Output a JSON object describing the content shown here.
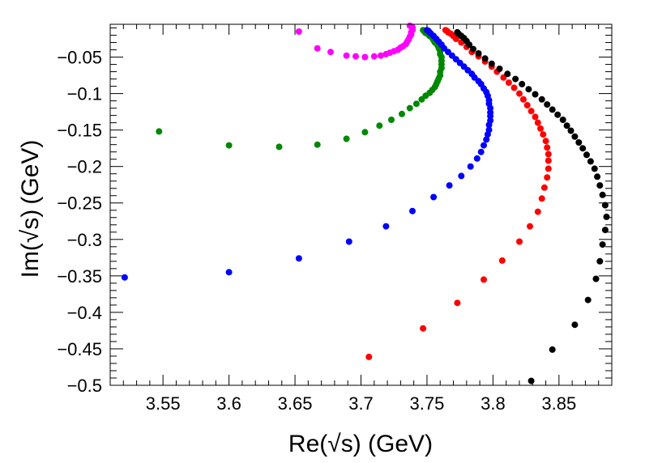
{
  "chart_data": {
    "type": "scatter",
    "title": "",
    "xlabel": "Re(√s) (GeV)",
    "ylabel": "Im(√s) (GeV)",
    "xlim": [
      3.51,
      3.89
    ],
    "ylim": [
      -0.5,
      -0.005
    ],
    "x_ticks": [
      {
        "value": 3.55,
        "label": "3.55"
      },
      {
        "value": 3.6,
        "label": "3.6"
      },
      {
        "value": 3.65,
        "label": "3.65"
      },
      {
        "value": 3.7,
        "label": "3.7"
      },
      {
        "value": 3.75,
        "label": "3.75"
      },
      {
        "value": 3.8,
        "label": "3.8"
      },
      {
        "value": 3.85,
        "label": "3.85"
      }
    ],
    "y_ticks": [
      {
        "value": -0.05,
        "label": "−0.05"
      },
      {
        "value": -0.1,
        "label": "−0.1"
      },
      {
        "value": -0.15,
        "label": "−0.15"
      },
      {
        "value": -0.2,
        "label": "−0.2"
      },
      {
        "value": -0.25,
        "label": "−0.25"
      },
      {
        "value": -0.3,
        "label": "−0.3"
      },
      {
        "value": -0.35,
        "label": "−0.35"
      },
      {
        "value": -0.4,
        "label": "−0.4"
      },
      {
        "value": -0.45,
        "label": "−0.45"
      },
      {
        "value": -0.5,
        "label": "−0.5"
      }
    ],
    "grid": false,
    "legend": "none",
    "series": [
      {
        "name": "magenta",
        "color": "#ff00ff",
        "points": [
          [
            3.653,
            -0.015
          ],
          [
            3.667,
            -0.038
          ],
          [
            3.677,
            -0.043
          ],
          [
            3.689,
            -0.048
          ],
          [
            3.696,
            -0.049
          ],
          [
            3.703,
            -0.05
          ],
          [
            3.71,
            -0.049
          ],
          [
            3.715,
            -0.048
          ],
          [
            3.719,
            -0.046
          ],
          [
            3.722,
            -0.044
          ],
          [
            3.725,
            -0.042
          ],
          [
            3.728,
            -0.04
          ],
          [
            3.73,
            -0.037
          ],
          [
            3.732,
            -0.035
          ],
          [
            3.734,
            -0.032
          ],
          [
            3.735,
            -0.029
          ],
          [
            3.736,
            -0.026
          ],
          [
            3.737,
            -0.022
          ],
          [
            3.738,
            -0.019
          ],
          [
            3.738,
            -0.016
          ],
          [
            3.739,
            -0.013
          ],
          [
            3.739,
            -0.011
          ],
          [
            3.739,
            -0.009
          ],
          [
            3.738,
            -0.008
          ],
          [
            3.737,
            -0.007
          ]
        ]
      },
      {
        "name": "green",
        "color": "#008800",
        "points": [
          [
            3.547,
            -0.152
          ],
          [
            3.6,
            -0.171
          ],
          [
            3.638,
            -0.173
          ],
          [
            3.667,
            -0.17
          ],
          [
            3.689,
            -0.162
          ],
          [
            3.703,
            -0.153
          ],
          [
            3.714,
            -0.144
          ],
          [
            3.723,
            -0.136
          ],
          [
            3.731,
            -0.128
          ],
          [
            3.737,
            -0.12
          ],
          [
            3.742,
            -0.114
          ],
          [
            3.746,
            -0.108
          ],
          [
            3.749,
            -0.103
          ],
          [
            3.752,
            -0.099
          ],
          [
            3.754,
            -0.095
          ],
          [
            3.756,
            -0.091
          ],
          [
            3.757,
            -0.087
          ],
          [
            3.758,
            -0.083
          ],
          [
            3.759,
            -0.079
          ],
          [
            3.76,
            -0.075
          ],
          [
            3.76,
            -0.07
          ],
          [
            3.761,
            -0.065
          ],
          [
            3.761,
            -0.06
          ],
          [
            3.761,
            -0.055
          ],
          [
            3.761,
            -0.05
          ],
          [
            3.76,
            -0.046
          ],
          [
            3.76,
            -0.042
          ],
          [
            3.759,
            -0.038
          ],
          [
            3.758,
            -0.034
          ],
          [
            3.756,
            -0.03
          ],
          [
            3.755,
            -0.027
          ],
          [
            3.754,
            -0.024
          ],
          [
            3.752,
            -0.021
          ],
          [
            3.751,
            -0.019
          ],
          [
            3.749,
            -0.017
          ],
          [
            3.748,
            -0.015
          ],
          [
            3.747,
            -0.013
          ]
        ]
      },
      {
        "name": "blue",
        "color": "#0000ff",
        "points": [
          [
            3.521,
            -0.352
          ],
          [
            3.6,
            -0.345
          ],
          [
            3.653,
            -0.326
          ],
          [
            3.691,
            -0.303
          ],
          [
            3.719,
            -0.282
          ],
          [
            3.739,
            -0.261
          ],
          [
            3.755,
            -0.242
          ],
          [
            3.767,
            -0.226
          ],
          [
            3.776,
            -0.213
          ],
          [
            3.783,
            -0.2
          ],
          [
            3.788,
            -0.189
          ],
          [
            3.791,
            -0.18
          ],
          [
            3.793,
            -0.171
          ],
          [
            3.795,
            -0.163
          ],
          [
            3.796,
            -0.156
          ],
          [
            3.797,
            -0.15
          ],
          [
            3.797,
            -0.143
          ],
          [
            3.798,
            -0.137
          ],
          [
            3.798,
            -0.131
          ],
          [
            3.798,
            -0.126
          ],
          [
            3.798,
            -0.12
          ],
          [
            3.797,
            -0.114
          ],
          [
            3.797,
            -0.109
          ],
          [
            3.796,
            -0.103
          ],
          [
            3.795,
            -0.098
          ],
          [
            3.793,
            -0.093
          ],
          [
            3.791,
            -0.087
          ],
          [
            3.789,
            -0.083
          ],
          [
            3.786,
            -0.078
          ],
          [
            3.784,
            -0.073
          ],
          [
            3.781,
            -0.068
          ],
          [
            3.778,
            -0.063
          ],
          [
            3.775,
            -0.058
          ],
          [
            3.772,
            -0.053
          ],
          [
            3.769,
            -0.048
          ],
          [
            3.766,
            -0.043
          ],
          [
            3.763,
            -0.038
          ],
          [
            3.761,
            -0.033
          ],
          [
            3.759,
            -0.029
          ],
          [
            3.757,
            -0.025
          ],
          [
            3.755,
            -0.021
          ],
          [
            3.753,
            -0.018
          ],
          [
            3.752,
            -0.016
          ],
          [
            3.751,
            -0.014
          ],
          [
            3.75,
            -0.013
          ]
        ]
      },
      {
        "name": "red",
        "color": "#ff0000",
        "points": [
          [
            3.706,
            -0.461
          ],
          [
            3.747,
            -0.422
          ],
          [
            3.773,
            -0.387
          ],
          [
            3.793,
            -0.355
          ],
          [
            3.807,
            -0.329
          ],
          [
            3.82,
            -0.303
          ],
          [
            3.828,
            -0.282
          ],
          [
            3.834,
            -0.262
          ],
          [
            3.837,
            -0.244
          ],
          [
            3.839,
            -0.229
          ],
          [
            3.841,
            -0.215
          ],
          [
            3.842,
            -0.203
          ],
          [
            3.842,
            -0.192
          ],
          [
            3.842,
            -0.183
          ],
          [
            3.841,
            -0.174
          ],
          [
            3.84,
            -0.165
          ],
          [
            3.838,
            -0.156
          ],
          [
            3.836,
            -0.148
          ],
          [
            3.834,
            -0.14
          ],
          [
            3.832,
            -0.132
          ],
          [
            3.829,
            -0.124
          ],
          [
            3.826,
            -0.116
          ],
          [
            3.823,
            -0.108
          ],
          [
            3.82,
            -0.1
          ],
          [
            3.816,
            -0.092
          ],
          [
            3.812,
            -0.085
          ],
          [
            3.808,
            -0.078
          ],
          [
            3.803,
            -0.07
          ],
          [
            3.799,
            -0.063
          ],
          [
            3.794,
            -0.056
          ],
          [
            3.789,
            -0.049
          ],
          [
            3.784,
            -0.043
          ],
          [
            3.78,
            -0.036
          ],
          [
            3.776,
            -0.03
          ],
          [
            3.772,
            -0.025
          ],
          [
            3.77,
            -0.021
          ],
          [
            3.768,
            -0.018
          ],
          [
            3.766,
            -0.016
          ],
          [
            3.765,
            -0.014
          ],
          [
            3.764,
            -0.013
          ]
        ]
      },
      {
        "name": "black",
        "color": "#000000",
        "points": [
          [
            3.829,
            -0.494
          ],
          [
            3.845,
            -0.451
          ],
          [
            3.862,
            -0.417
          ],
          [
            3.872,
            -0.383
          ],
          [
            3.878,
            -0.354
          ],
          [
            3.881,
            -0.33
          ],
          [
            3.883,
            -0.307
          ],
          [
            3.885,
            -0.287
          ],
          [
            3.886,
            -0.269
          ],
          [
            3.885,
            -0.253
          ],
          [
            3.883,
            -0.239
          ],
          [
            3.881,
            -0.226
          ],
          [
            3.879,
            -0.214
          ],
          [
            3.877,
            -0.203
          ],
          [
            3.874,
            -0.193
          ],
          [
            3.871,
            -0.184
          ],
          [
            3.868,
            -0.175
          ],
          [
            3.865,
            -0.167
          ],
          [
            3.862,
            -0.159
          ],
          [
            3.859,
            -0.151
          ],
          [
            3.856,
            -0.144
          ],
          [
            3.853,
            -0.136
          ],
          [
            3.849,
            -0.129
          ],
          [
            3.845,
            -0.122
          ],
          [
            3.841,
            -0.115
          ],
          [
            3.837,
            -0.108
          ],
          [
            3.832,
            -0.101
          ],
          [
            3.827,
            -0.094
          ],
          [
            3.822,
            -0.087
          ],
          [
            3.817,
            -0.08
          ],
          [
            3.811,
            -0.073
          ],
          [
            3.805,
            -0.066
          ],
          [
            3.799,
            -0.059
          ],
          [
            3.794,
            -0.052
          ],
          [
            3.789,
            -0.045
          ],
          [
            3.785,
            -0.039
          ],
          [
            3.782,
            -0.033
          ],
          [
            3.78,
            -0.028
          ],
          [
            3.778,
            -0.024
          ],
          [
            3.776,
            -0.021
          ],
          [
            3.774,
            -0.018
          ],
          [
            3.773,
            -0.016
          ]
        ]
      }
    ]
  }
}
